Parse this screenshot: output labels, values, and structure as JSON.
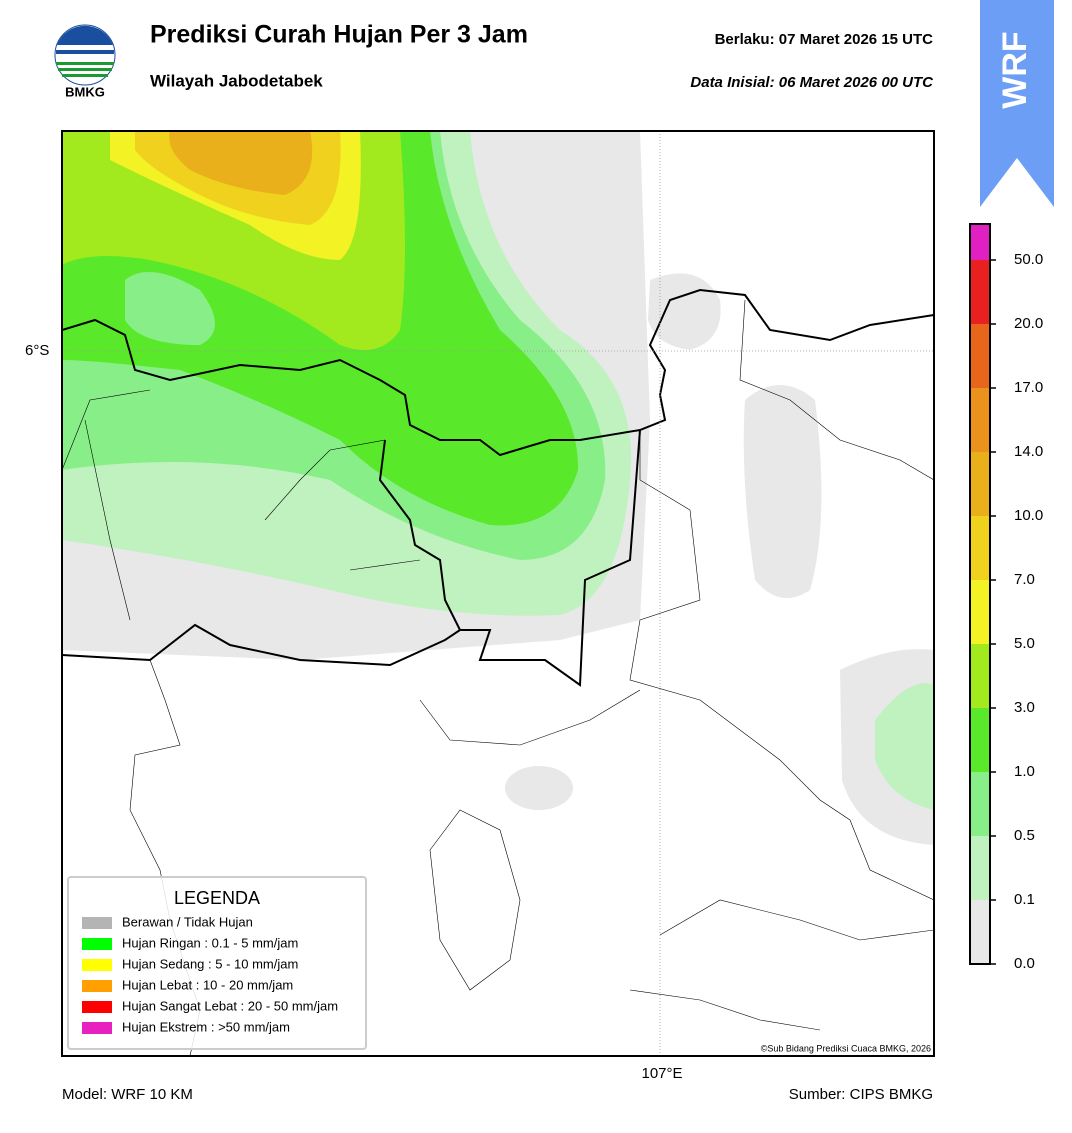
{
  "header": {
    "logo_text": "BMKG",
    "title": "Prediksi Curah Hujan Per 3 Jam",
    "subtitle": "Wilayah Jabodetabek",
    "valid_label": "Berlaku:  07 Maret 2026 15 UTC",
    "init_label": "Data Inisial:  06 Maret 2026 00 UTC",
    "badge": "WRF"
  },
  "map": {
    "lat_label": "6°S",
    "lon_label": "107°E",
    "credit": "©Sub Bidang Prediksi Cuaca BMKG, 2026"
  },
  "legend": {
    "title": "LEGENDA",
    "items": [
      {
        "label": "Berawan / Tidak Hujan",
        "color": "#b4b4b4"
      },
      {
        "label": "Hujan Ringan : 0.1 - 5 mm/jam",
        "color": "#00ff00"
      },
      {
        "label": "Hujan Sedang : 5 - 10 mm/jam",
        "color": "#ffff00"
      },
      {
        "label": "Hujan Lebat : 10 - 20 mm/jam",
        "color": "#ffa000"
      },
      {
        "label": "Hujan Sangat Lebat : 20 - 50 mm/jam",
        "color": "#ff0000"
      },
      {
        "label": "Hujan Ekstrem : >50 mm/jam",
        "color": "#e820c0"
      }
    ]
  },
  "colorbar": {
    "ticks": [
      "0.0",
      "0.1",
      "0.5",
      "1.0",
      "3.0",
      "5.0",
      "7.0",
      "10.0",
      "14.0",
      "17.0",
      "20.0",
      "50.0"
    ],
    "colors": [
      "#e8e8e8",
      "#c0f2c0",
      "#88ef88",
      "#5ae82a",
      "#a2ea1e",
      "#f2f224",
      "#f0d21e",
      "#eab01c",
      "#ea921c",
      "#e8661c",
      "#e82020",
      "#e020c0"
    ]
  },
  "footer": {
    "model": "Model: WRF 10 KM",
    "source": "Sumber: CIPS BMKG"
  }
}
